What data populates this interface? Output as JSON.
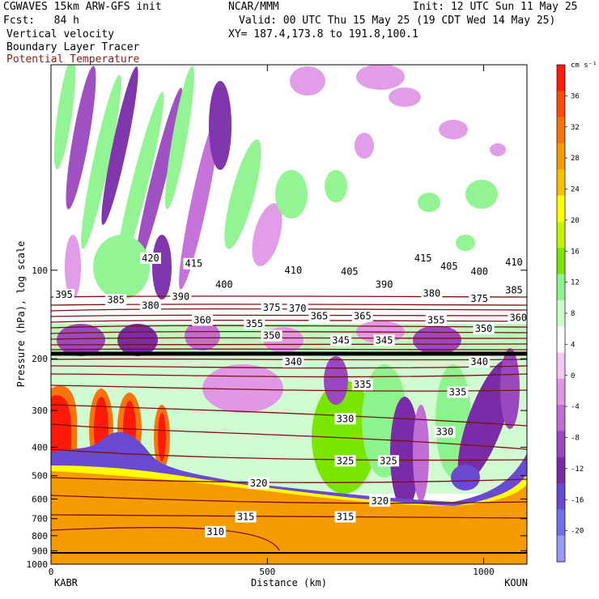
{
  "header": {
    "line1_left": "CGWAVES 15km ARW-GFS init",
    "line1_mid": "NCAR/MMM",
    "line1_right": "Init: 12 UTC Sun 11 May 25",
    "line2_left": "Fcst:   84 h",
    "line2_right": "Valid: 00 UTC Thu 15 May 25 (19 CDT Wed 14 May 25)",
    "line3_left": "Vertical velocity",
    "line3_right": "XY= 187.4,173.8 to 191.8,100.1",
    "line4_left": "Boundary Layer Tracer",
    "line5_left": "Potential Temperature"
  },
  "colors": {
    "theta_contour": "#7a1010",
    "tropopause": "#000000",
    "ground": "#f59a00"
  },
  "chart_data": {
    "type": "heatmap",
    "xlabel": "Distance (km)",
    "ylabel": "Pressure (hPa), log scale",
    "x_ticks": [
      0,
      500,
      1000
    ],
    "x_range": [
      0,
      1100
    ],
    "x_endpoint_labels": [
      "KABR",
      "KOUN"
    ],
    "y_scale": "log",
    "y_range": [
      1000,
      20
    ],
    "y_ticks": [
      100,
      200,
      300,
      400,
      500,
      600,
      700,
      800,
      900,
      1000
    ],
    "colorbar": {
      "units": "cm s⁻¹",
      "tick_labels": [
        36,
        32,
        28,
        24,
        20,
        16,
        12,
        8,
        4,
        0,
        -4,
        -8,
        -12,
        -16,
        -20
      ],
      "colors": [
        "#ff1a0a",
        "#ff4a0e",
        "#f7740c",
        "#f59a00",
        "#f9c000",
        "#ffff00",
        "#c6f500",
        "#7ae600",
        "#8df48d",
        "#caffca",
        "#ffffff",
        "#f4c8f4",
        "#e098e6",
        "#c26cd6",
        "#9a48bf",
        "#7a2ca8",
        "#6a4ad0",
        "#7070ee",
        "#9a9af8"
      ]
    },
    "theta_contour_labels": [
      {
        "value": "420",
        "x_km": 230,
        "p_hpa": 91
      },
      {
        "value": "415",
        "x_km": 330,
        "p_hpa": 95
      },
      {
        "value": "410",
        "x_km": 560,
        "p_hpa": 100
      },
      {
        "value": "405",
        "x_km": 690,
        "p_hpa": 101
      },
      {
        "value": "415",
        "x_km": 860,
        "p_hpa": 91
      },
      {
        "value": "405",
        "x_km": 920,
        "p_hpa": 97
      },
      {
        "value": "400",
        "x_km": 990,
        "p_hpa": 101
      },
      {
        "value": "410",
        "x_km": 1070,
        "p_hpa": 94
      },
      {
        "value": "400",
        "x_km": 400,
        "p_hpa": 112
      },
      {
        "value": "390",
        "x_km": 300,
        "p_hpa": 123
      },
      {
        "value": "390",
        "x_km": 770,
        "p_hpa": 112
      },
      {
        "value": "380",
        "x_km": 880,
        "p_hpa": 120
      },
      {
        "value": "375",
        "x_km": 990,
        "p_hpa": 125
      },
      {
        "value": "385",
        "x_km": 1070,
        "p_hpa": 117
      },
      {
        "value": "395",
        "x_km": 30,
        "p_hpa": 121
      },
      {
        "value": "385",
        "x_km": 150,
        "p_hpa": 126
      },
      {
        "value": "380",
        "x_km": 230,
        "p_hpa": 132
      },
      {
        "value": "375",
        "x_km": 510,
        "p_hpa": 134
      },
      {
        "value": "370",
        "x_km": 570,
        "p_hpa": 135
      },
      {
        "value": "360",
        "x_km": 350,
        "p_hpa": 148
      },
      {
        "value": "365",
        "x_km": 620,
        "p_hpa": 143
      },
      {
        "value": "365",
        "x_km": 720,
        "p_hpa": 143
      },
      {
        "value": "355",
        "x_km": 470,
        "p_hpa": 152
      },
      {
        "value": "350",
        "x_km": 510,
        "p_hpa": 167
      },
      {
        "value": "345",
        "x_km": 670,
        "p_hpa": 173
      },
      {
        "value": "345",
        "x_km": 770,
        "p_hpa": 173
      },
      {
        "value": "355",
        "x_km": 890,
        "p_hpa": 148
      },
      {
        "value": "350",
        "x_km": 1000,
        "p_hpa": 158
      },
      {
        "value": "360",
        "x_km": 1080,
        "p_hpa": 145
      },
      {
        "value": "340",
        "x_km": 560,
        "p_hpa": 205
      },
      {
        "value": "340",
        "x_km": 990,
        "p_hpa": 205
      },
      {
        "value": "335",
        "x_km": 720,
        "p_hpa": 245
      },
      {
        "value": "335",
        "x_km": 940,
        "p_hpa": 260
      },
      {
        "value": "330",
        "x_km": 680,
        "p_hpa": 320
      },
      {
        "value": "330",
        "x_km": 910,
        "p_hpa": 355
      },
      {
        "value": "325",
        "x_km": 680,
        "p_hpa": 445
      },
      {
        "value": "325",
        "x_km": 780,
        "p_hpa": 445
      },
      {
        "value": "320",
        "x_km": 480,
        "p_hpa": 530
      },
      {
        "value": "320",
        "x_km": 760,
        "p_hpa": 610
      },
      {
        "value": "315",
        "x_km": 450,
        "p_hpa": 690
      },
      {
        "value": "315",
        "x_km": 680,
        "p_hpa": 690
      },
      {
        "value": "310",
        "x_km": 380,
        "p_hpa": 775
      }
    ]
  }
}
